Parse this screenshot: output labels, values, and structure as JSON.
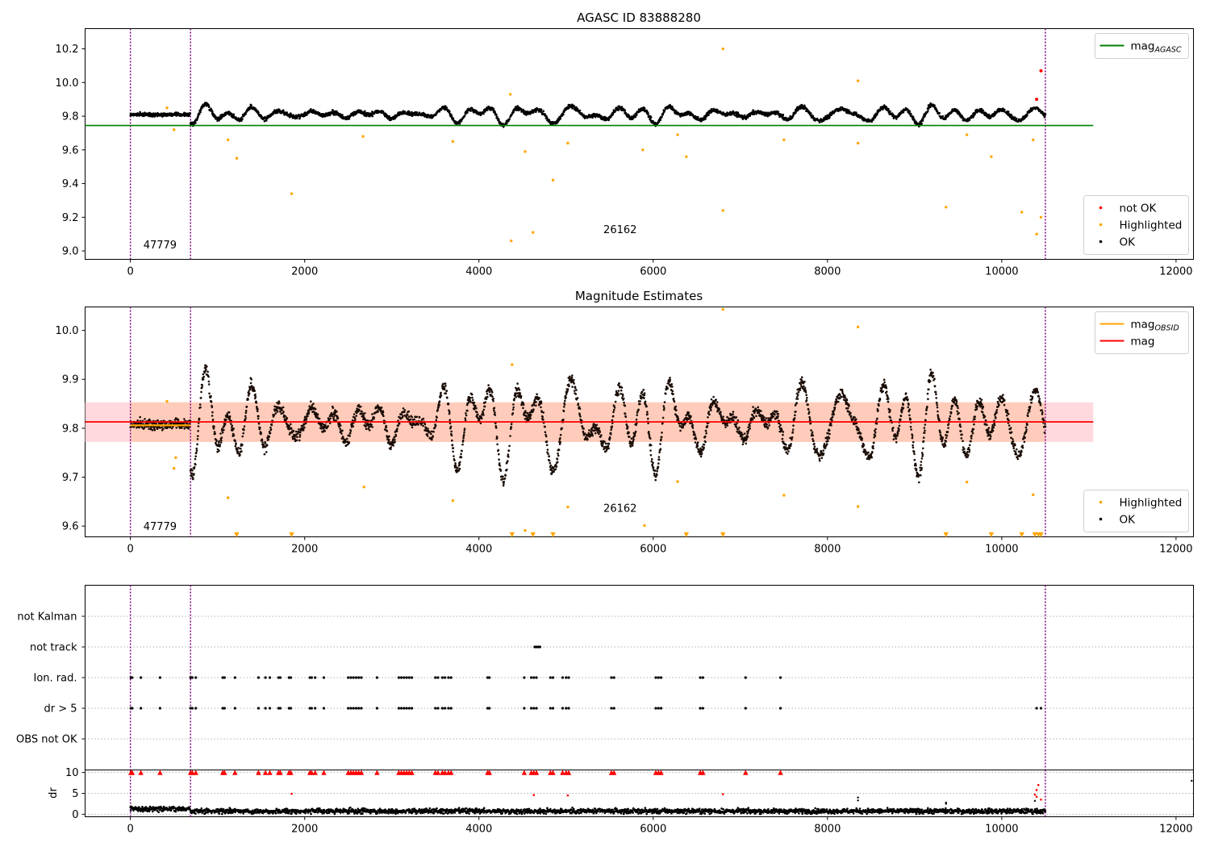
{
  "chart_data": [
    {
      "type": "scatter",
      "title": "AGASC ID 83888280",
      "xlim": [
        -520,
        12200
      ],
      "ylim": [
        8.95,
        10.32
      ],
      "xticks": [
        "0",
        "2000",
        "4000",
        "6000",
        "8000",
        "10000",
        "12000"
      ],
      "yticks": [
        "9.0",
        "9.2",
        "9.4",
        "9.6",
        "9.8",
        "10.0",
        "10.2"
      ],
      "grid": false,
      "legend_upper": {
        "placement": "top-right",
        "entries": [
          {
            "label": "mag",
            "sub": "AGASC",
            "color": "#008000",
            "kind": "line"
          }
        ]
      },
      "legend_lower": {
        "placement": "bottom-right",
        "entries": [
          {
            "label": "not OK",
            "color": "#ff0000",
            "kind": "dot"
          },
          {
            "label": "Highlighted",
            "color": "#ffa500",
            "kind": "dot"
          },
          {
            "label": "OK",
            "color": "#000000",
            "kind": "dot"
          }
        ]
      },
      "hlines": [
        {
          "y": 9.745,
          "x0": -520,
          "x1": 11050,
          "color": "#008000"
        }
      ],
      "obs_boundaries": [
        0,
        690,
        10500
      ],
      "obsid_labels": [
        {
          "text": "47779",
          "x": 340,
          "y": 9.015
        },
        {
          "text": "26162",
          "x": 5620,
          "y": 9.105
        }
      ],
      "series": [
        {
          "name": "OK",
          "color": "#000000",
          "model": "obs_mag",
          "variation": "agasc"
        },
        {
          "name": "Highlighted",
          "color": "#ffa500",
          "points": [
            [
              420,
              9.85
            ],
            [
              500,
              9.72
            ],
            [
              1120,
              9.66
            ],
            [
              1220,
              9.55
            ],
            [
              1850,
              9.34
            ],
            [
              2670,
              9.68
            ],
            [
              3700,
              9.65
            ],
            [
              4360,
              9.93
            ],
            [
              4370,
              9.06
            ],
            [
              4530,
              9.59
            ],
            [
              4620,
              9.11
            ],
            [
              4850,
              9.42
            ],
            [
              5020,
              9.64
            ],
            [
              5880,
              9.6
            ],
            [
              6280,
              9.69
            ],
            [
              6380,
              9.56
            ],
            [
              6800,
              10.2
            ],
            [
              6800,
              9.24
            ],
            [
              7500,
              9.66
            ],
            [
              8350,
              10.01
            ],
            [
              8350,
              9.64
            ],
            [
              9360,
              9.26
            ],
            [
              9600,
              9.69
            ],
            [
              9880,
              9.56
            ],
            [
              10230,
              9.23
            ],
            [
              10360,
              9.66
            ],
            [
              10400,
              9.1
            ],
            [
              10450,
              9.2
            ]
          ]
        },
        {
          "name": "not OK",
          "color": "#ff0000",
          "points": [
            [
              10450,
              10.07
            ],
            [
              10400,
              9.9
            ]
          ]
        }
      ]
    },
    {
      "type": "scatter",
      "title": "Magnitude Estimates",
      "xlim": [
        -520,
        12200
      ],
      "ylim": [
        9.578,
        10.048
      ],
      "xticks": [
        "0",
        "2000",
        "4000",
        "6000",
        "8000",
        "10000",
        "12000"
      ],
      "yticks": [
        "9.6",
        "9.7",
        "9.8",
        "9.9",
        "10.0"
      ],
      "grid": false,
      "legend_upper": {
        "placement": "top-right",
        "entries": [
          {
            "label": "mag",
            "sub": "OBSID",
            "color": "#ffa500",
            "kind": "line"
          },
          {
            "label": "mag",
            "sub": "",
            "color": "#ff0000",
            "kind": "line"
          }
        ]
      },
      "legend_lower": {
        "placement": "bottom-right",
        "entries": [
          {
            "label": "Highlighted",
            "color": "#ffa500",
            "kind": "dot"
          },
          {
            "label": "OK",
            "color": "#000000",
            "kind": "dot"
          }
        ]
      },
      "bands": [
        {
          "y0": 9.772,
          "y1": 9.853,
          "x0": -520,
          "x1": 11050,
          "color": "#ffd0d4"
        }
      ],
      "hlines": [
        {
          "y": 9.813,
          "x0": -520,
          "x1": 11050,
          "color": "#ff0000"
        },
        {
          "y": 9.806,
          "x0": 0,
          "x1": 690,
          "color": "#ffa500"
        }
      ],
      "obs_boundaries": [
        0,
        690,
        10500
      ],
      "obsid_labels": [
        {
          "text": "47779",
          "x": 340,
          "y": 9.592
        },
        {
          "text": "26162",
          "x": 5620,
          "y": 9.629
        }
      ],
      "series": [
        {
          "name": "OK",
          "color": "#000000",
          "model": "obs_mag",
          "variation": "estimates"
        },
        {
          "name": "Highlighted",
          "color": "#ffa500",
          "points": [
            [
              420,
              9.855
            ],
            [
              520,
              9.74
            ],
            [
              500,
              9.718
            ],
            [
              1120,
              9.658
            ],
            [
              2680,
              9.68
            ],
            [
              3700,
              9.652
            ],
            [
              4380,
              9.93
            ],
            [
              4530,
              9.591
            ],
            [
              5020,
              9.639
            ],
            [
              5900,
              9.601
            ],
            [
              6280,
              9.691
            ],
            [
              6800,
              10.043
            ],
            [
              7500,
              9.663
            ],
            [
              8350,
              10.007
            ],
            [
              8350,
              9.64
            ],
            [
              9600,
              9.69
            ],
            [
              10360,
              9.664
            ]
          ]
        },
        {
          "name": "Highlighted (clipped)",
          "color": "#ffa500",
          "marker": "triangle-down",
          "y": 9.582,
          "x": [
            1220,
            1850,
            4380,
            4620,
            4850,
            6380,
            6800,
            9360,
            9880,
            10230,
            10380,
            10420,
            10450
          ]
        }
      ]
    },
    {
      "type": "scatter",
      "title": "",
      "xlim": [
        -520,
        12200
      ],
      "categories": [
        "not Kalman",
        "not track",
        "Ion. rad.",
        "dr > 5",
        "OBS not OK"
      ],
      "series": [
        {
          "name": "not Kalman",
          "x": []
        },
        {
          "name": "not track",
          "x": [
            4640,
            4660,
            4680,
            4700
          ]
        },
        {
          "name": "Ion. rad.",
          "x": [
            5,
            20,
            120,
            340,
            690,
            710,
            750,
            1060,
            1080,
            1200,
            1470,
            1550,
            1600,
            1700,
            1720,
            1820,
            1840,
            2060,
            2080,
            2120,
            2220,
            2500,
            2530,
            2560,
            2590,
            2620,
            2650,
            2830,
            3080,
            3110,
            3140,
            3170,
            3200,
            3230,
            3500,
            3530,
            3580,
            3610,
            3650,
            3680,
            4100,
            4120,
            4520,
            4600,
            4630,
            4660,
            4820,
            4850,
            4960,
            5000,
            5030,
            5520,
            5550,
            6030,
            6060,
            6090,
            6540,
            6570,
            7060,
            7460
          ]
        },
        {
          "name": "dr > 5",
          "x": [
            5,
            20,
            120,
            340,
            690,
            710,
            750,
            1060,
            1080,
            1200,
            1470,
            1550,
            1600,
            1700,
            1720,
            1820,
            1840,
            2060,
            2080,
            2120,
            2220,
            2500,
            2530,
            2560,
            2590,
            2620,
            2650,
            2830,
            3080,
            3110,
            3140,
            3170,
            3200,
            3230,
            3500,
            3530,
            3580,
            3610,
            3650,
            3680,
            4100,
            4120,
            4520,
            4600,
            4630,
            4660,
            4820,
            4850,
            4960,
            5000,
            5030,
            5520,
            5550,
            6030,
            6060,
            6090,
            6540,
            6570,
            7060,
            7460,
            10400,
            10450
          ]
        },
        {
          "name": "OBS not OK",
          "x": []
        }
      ],
      "obs_boundaries": [
        0,
        690,
        10500
      ]
    },
    {
      "type": "scatter",
      "title": "",
      "xlim": [
        -520,
        12200
      ],
      "ylim": [
        -0.6,
        10.6
      ],
      "ylabel": "dr",
      "xticks": [
        "0",
        "2000",
        "4000",
        "6000",
        "8000",
        "10000",
        "12000"
      ],
      "yticks": [
        "0",
        "5",
        "10"
      ],
      "series": [
        {
          "name": "dr",
          "color": "#000000",
          "model": "dr"
        },
        {
          "name": "dr clipped",
          "color": "#ff0000",
          "marker": "triangle-up",
          "y": 10,
          "x": [
            5,
            20,
            120,
            340,
            690,
            710,
            750,
            1060,
            1080,
            1200,
            1470,
            1550,
            1600,
            1700,
            1720,
            1820,
            1840,
            2060,
            2080,
            2120,
            2220,
            2500,
            2530,
            2560,
            2590,
            2620,
            2650,
            2830,
            3080,
            3110,
            3140,
            3170,
            3200,
            3230,
            3500,
            3530,
            3580,
            3610,
            3650,
            3680,
            4100,
            4120,
            4520,
            4600,
            4630,
            4660,
            4820,
            4850,
            4960,
            5000,
            5030,
            5520,
            5550,
            6030,
            6060,
            6090,
            6540,
            6570,
            7060,
            7460
          ]
        },
        {
          "name": "dr high",
          "color": "#ff0000",
          "points": [
            [
              1850,
              4.9
            ],
            [
              4630,
              4.6
            ],
            [
              5020,
              4.5
            ],
            [
              6800,
              4.8
            ],
            [
              10400,
              5.8
            ],
            [
              10380,
              4.7
            ],
            [
              10420,
              7.0
            ],
            [
              10400,
              4.2
            ],
            [
              10450,
              3.5
            ]
          ]
        },
        {
          "name": "dr mid",
          "color": "#000000",
          "points": [
            [
              8350,
              4.0
            ],
            [
              8350,
              3.3
            ],
            [
              9360,
              2.8
            ],
            [
              9360,
              2.5
            ],
            [
              10380,
              3.2
            ],
            [
              12180,
              8.0
            ]
          ]
        }
      ],
      "obs_boundaries": [
        0,
        690,
        10500
      ]
    }
  ]
}
